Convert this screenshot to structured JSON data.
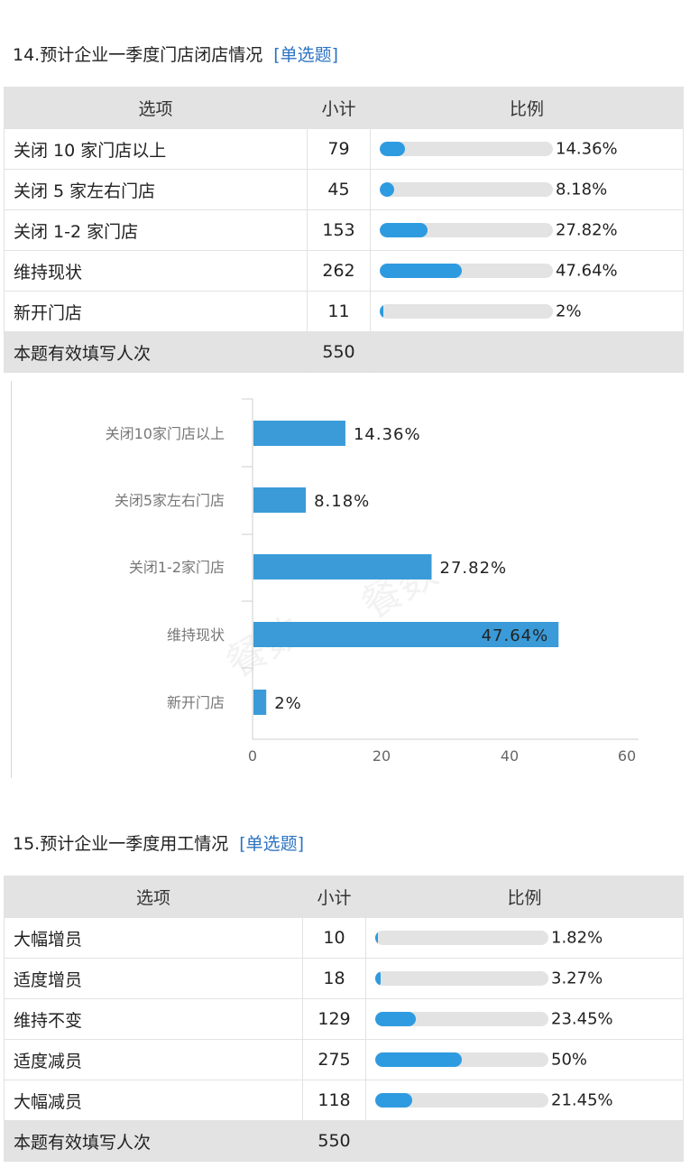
{
  "q14": {
    "title": "14.预计企业一季度门店闭店情况",
    "type_tag": "[单选题]",
    "headers": {
      "option": "选项",
      "count": "小计",
      "ratio": "比例"
    },
    "rows": [
      {
        "option": "关闭 10 家门店以上",
        "count": "79",
        "pct": "14.36%",
        "value": 14.36
      },
      {
        "option": "关闭 5 家左右门店",
        "count": "45",
        "pct": "8.18%",
        "value": 8.18
      },
      {
        "option": "关闭 1-2 家门店",
        "count": "153",
        "pct": "27.82%",
        "value": 27.82
      },
      {
        "option": "维持现状",
        "count": "262",
        "pct": "47.64%",
        "value": 47.64
      },
      {
        "option": "新开门店",
        "count": "11",
        "pct": "2%",
        "value": 2
      }
    ],
    "total_label": "本题有效填写人次",
    "total_count": "550"
  },
  "chart_data": {
    "type": "bar",
    "orientation": "horizontal",
    "categories": [
      "关闭10家门店以上",
      "关闭5家左右门店",
      "关闭1-2家门店",
      "维持现状",
      "新开门店"
    ],
    "values": [
      14.36,
      8.18,
      27.82,
      47.64,
      2
    ],
    "data_labels": [
      "14.36%",
      "8.18%",
      "27.82%",
      "47.64%",
      "2%"
    ],
    "xlim": [
      0,
      60
    ],
    "x_ticks": [
      "0",
      "20",
      "40",
      "60"
    ],
    "bar_color": "#3a9bd8",
    "watermark": "餐数"
  },
  "q15": {
    "title": "15.预计企业一季度用工情况",
    "type_tag": "[单选题]",
    "headers": {
      "option": "选项",
      "count": "小计",
      "ratio": "比例"
    },
    "rows": [
      {
        "option": "大幅增员",
        "count": "10",
        "pct": "1.82%",
        "value": 1.82
      },
      {
        "option": "适度增员",
        "count": "18",
        "pct": "3.27%",
        "value": 3.27
      },
      {
        "option": "维持不变",
        "count": "129",
        "pct": "23.45%",
        "value": 23.45
      },
      {
        "option": "适度减员",
        "count": "275",
        "pct": "50%",
        "value": 50
      },
      {
        "option": "大幅减员",
        "count": "118",
        "pct": "21.45%",
        "value": 21.45
      }
    ],
    "total_label": "本题有效填写人次",
    "total_count": "550"
  }
}
